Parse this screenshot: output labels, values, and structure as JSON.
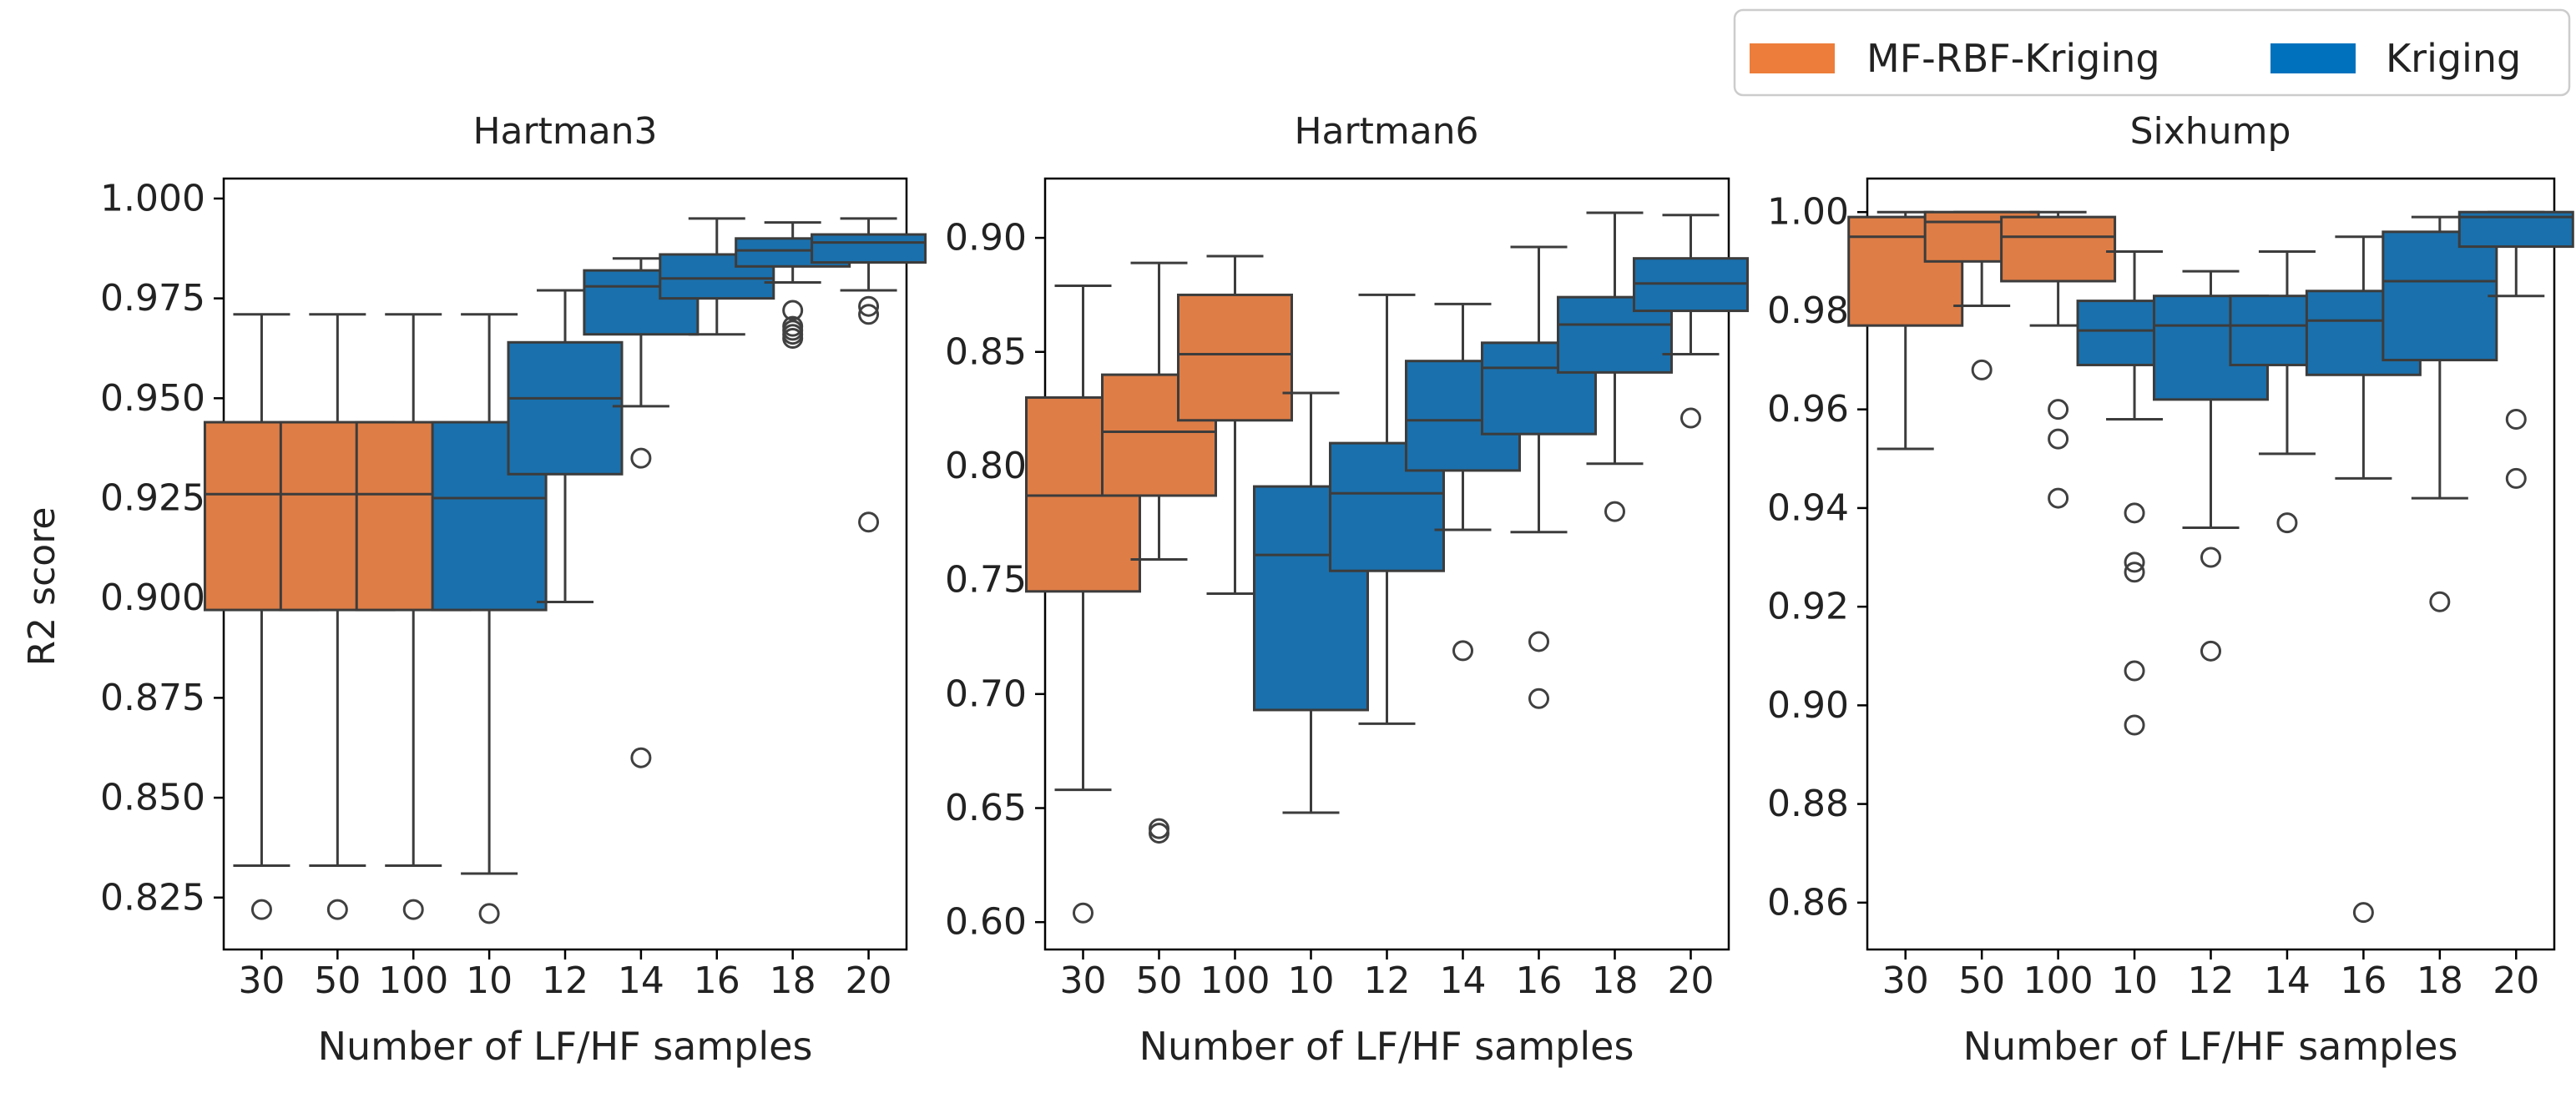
{
  "legend": {
    "placement": "top-right",
    "items": [
      {
        "label": "MF-RBF-Kriging",
        "color": "#ED7D3A"
      },
      {
        "label": "Kriging",
        "color": "#0072BD"
      }
    ]
  },
  "shared": {
    "xlabel": "Number of LF/HF samples",
    "ylabel": "R2 score",
    "categories": [
      "30",
      "50",
      "100",
      "10",
      "12",
      "14",
      "16",
      "18",
      "20"
    ],
    "category_series": [
      "MF-RBF-Kriging",
      "MF-RBF-Kriging",
      "MF-RBF-Kriging",
      "Kriging",
      "Kriging",
      "Kriging",
      "Kriging",
      "Kriging",
      "Kriging"
    ]
  },
  "colors": {
    "MF-RBF-Kriging": "#DE7D46",
    "Kriging": "#1A70AC",
    "median_line": "#3C3C3C",
    "whisker": "#3C3C3C",
    "outlier": "#404040"
  },
  "chart_data": [
    {
      "type": "box",
      "title": "Hartman3",
      "xlabel": "Number of LF/HF samples",
      "ylabel": "R2 score",
      "ylim": [
        0.812,
        1.005
      ],
      "yticks": [
        "0.825",
        "0.850",
        "0.875",
        "0.900",
        "0.925",
        "0.950",
        "0.975",
        "1.000"
      ],
      "categories": [
        "30",
        "50",
        "100",
        "10",
        "12",
        "14",
        "16",
        "18",
        "20"
      ],
      "boxes": [
        {
          "category": "30",
          "series": "MF-RBF-Kriging",
          "whisker_low": 0.833,
          "q1": 0.897,
          "median": 0.926,
          "q3": 0.944,
          "whisker_high": 0.971,
          "outliers": [
            0.822
          ]
        },
        {
          "category": "50",
          "series": "MF-RBF-Kriging",
          "whisker_low": 0.833,
          "q1": 0.897,
          "median": 0.926,
          "q3": 0.944,
          "whisker_high": 0.971,
          "outliers": [
            0.822
          ]
        },
        {
          "category": "100",
          "series": "MF-RBF-Kriging",
          "whisker_low": 0.833,
          "q1": 0.897,
          "median": 0.926,
          "q3": 0.944,
          "whisker_high": 0.971,
          "outliers": [
            0.822
          ]
        },
        {
          "category": "10",
          "series": "Kriging",
          "whisker_low": 0.831,
          "q1": 0.897,
          "median": 0.925,
          "q3": 0.944,
          "whisker_high": 0.971,
          "outliers": [
            0.821
          ]
        },
        {
          "category": "12",
          "series": "Kriging",
          "whisker_low": 0.899,
          "q1": 0.931,
          "median": 0.95,
          "q3": 0.964,
          "whisker_high": 0.977,
          "outliers": []
        },
        {
          "category": "14",
          "series": "Kriging",
          "whisker_low": 0.948,
          "q1": 0.966,
          "median": 0.978,
          "q3": 0.982,
          "whisker_high": 0.985,
          "outliers": [
            0.935,
            0.86
          ]
        },
        {
          "category": "16",
          "series": "Kriging",
          "whisker_low": 0.966,
          "q1": 0.975,
          "median": 0.98,
          "q3": 0.986,
          "whisker_high": 0.995,
          "outliers": []
        },
        {
          "category": "18",
          "series": "Kriging",
          "whisker_low": 0.979,
          "q1": 0.983,
          "median": 0.987,
          "q3": 0.99,
          "whisker_high": 0.994,
          "outliers": [
            0.972,
            0.968,
            0.967,
            0.966,
            0.965
          ]
        },
        {
          "category": "20",
          "series": "Kriging",
          "whisker_low": 0.977,
          "q1": 0.984,
          "median": 0.989,
          "q3": 0.991,
          "whisker_high": 0.995,
          "outliers": [
            0.973,
            0.971,
            0.919
          ]
        }
      ]
    },
    {
      "type": "box",
      "title": "Hartman6",
      "xlabel": "Number of LF/HF samples",
      "ylabel": "",
      "ylim": [
        0.588,
        0.926
      ],
      "yticks": [
        "0.60",
        "0.65",
        "0.70",
        "0.75",
        "0.80",
        "0.85",
        "0.90"
      ],
      "categories": [
        "30",
        "50",
        "100",
        "10",
        "12",
        "14",
        "16",
        "18",
        "20"
      ],
      "boxes": [
        {
          "category": "30",
          "series": "MF-RBF-Kriging",
          "whisker_low": 0.658,
          "q1": 0.745,
          "median": 0.787,
          "q3": 0.83,
          "whisker_high": 0.879,
          "outliers": [
            0.604
          ]
        },
        {
          "category": "50",
          "series": "MF-RBF-Kriging",
          "whisker_low": 0.759,
          "q1": 0.787,
          "median": 0.815,
          "q3": 0.84,
          "whisker_high": 0.889,
          "outliers": [
            0.641,
            0.639
          ]
        },
        {
          "category": "100",
          "series": "MF-RBF-Kriging",
          "whisker_low": 0.744,
          "q1": 0.82,
          "median": 0.849,
          "q3": 0.875,
          "whisker_high": 0.892,
          "outliers": []
        },
        {
          "category": "10",
          "series": "Kriging",
          "whisker_low": 0.648,
          "q1": 0.693,
          "median": 0.761,
          "q3": 0.791,
          "whisker_high": 0.832,
          "outliers": []
        },
        {
          "category": "12",
          "series": "Kriging",
          "whisker_low": 0.687,
          "q1": 0.754,
          "median": 0.788,
          "q3": 0.81,
          "whisker_high": 0.875,
          "outliers": []
        },
        {
          "category": "14",
          "series": "Kriging",
          "whisker_low": 0.772,
          "q1": 0.798,
          "median": 0.82,
          "q3": 0.846,
          "whisker_high": 0.871,
          "outliers": [
            0.719
          ]
        },
        {
          "category": "16",
          "series": "Kriging",
          "whisker_low": 0.771,
          "q1": 0.814,
          "median": 0.843,
          "q3": 0.854,
          "whisker_high": 0.896,
          "outliers": [
            0.723,
            0.698
          ]
        },
        {
          "category": "18",
          "series": "Kriging",
          "whisker_low": 0.801,
          "q1": 0.841,
          "median": 0.862,
          "q3": 0.874,
          "whisker_high": 0.911,
          "outliers": [
            0.78
          ]
        },
        {
          "category": "20",
          "series": "Kriging",
          "whisker_low": 0.849,
          "q1": 0.868,
          "median": 0.88,
          "q3": 0.891,
          "whisker_high": 0.91,
          "outliers": [
            0.821
          ]
        }
      ]
    },
    {
      "type": "box",
      "title": "Sixhump",
      "xlabel": "Number of LF/HF samples",
      "ylabel": "",
      "ylim": [
        0.8505,
        1.0068
      ],
      "yticks": [
        "0.86",
        "0.88",
        "0.90",
        "0.92",
        "0.94",
        "0.96",
        "0.98",
        "1.00"
      ],
      "categories": [
        "30",
        "50",
        "100",
        "10",
        "12",
        "14",
        "16",
        "18",
        "20"
      ],
      "boxes": [
        {
          "category": "30",
          "series": "MF-RBF-Kriging",
          "whisker_low": 0.952,
          "q1": 0.977,
          "median": 0.995,
          "q3": 0.999,
          "whisker_high": 1.0,
          "outliers": []
        },
        {
          "category": "50",
          "series": "MF-RBF-Kriging",
          "whisker_low": 0.981,
          "q1": 0.99,
          "median": 0.998,
          "q3": 1.0,
          "whisker_high": 1.0,
          "outliers": [
            0.968
          ]
        },
        {
          "category": "100",
          "series": "MF-RBF-Kriging",
          "whisker_low": 0.977,
          "q1": 0.986,
          "median": 0.995,
          "q3": 0.999,
          "whisker_high": 1.0,
          "outliers": [
            0.96,
            0.954,
            0.942
          ]
        },
        {
          "category": "10",
          "series": "Kriging",
          "whisker_low": 0.958,
          "q1": 0.969,
          "median": 0.976,
          "q3": 0.982,
          "whisker_high": 0.992,
          "outliers": [
            0.939,
            0.929,
            0.927,
            0.907,
            0.896
          ]
        },
        {
          "category": "12",
          "series": "Kriging",
          "whisker_low": 0.936,
          "q1": 0.962,
          "median": 0.977,
          "q3": 0.983,
          "whisker_high": 0.988,
          "outliers": [
            0.93,
            0.911
          ]
        },
        {
          "category": "14",
          "series": "Kriging",
          "whisker_low": 0.951,
          "q1": 0.969,
          "median": 0.977,
          "q3": 0.983,
          "whisker_high": 0.992,
          "outliers": [
            0.937
          ]
        },
        {
          "category": "16",
          "series": "Kriging",
          "whisker_low": 0.946,
          "q1": 0.967,
          "median": 0.978,
          "q3": 0.984,
          "whisker_high": 0.995,
          "outliers": [
            0.858
          ]
        },
        {
          "category": "18",
          "series": "Kriging",
          "whisker_low": 0.942,
          "q1": 0.97,
          "median": 0.986,
          "q3": 0.996,
          "whisker_high": 0.999,
          "outliers": [
            0.921
          ]
        },
        {
          "category": "20",
          "series": "Kriging",
          "whisker_low": 0.983,
          "q1": 0.993,
          "median": 0.999,
          "q3": 1.0,
          "whisker_high": 1.0,
          "outliers": [
            0.958,
            0.946
          ]
        }
      ]
    }
  ]
}
